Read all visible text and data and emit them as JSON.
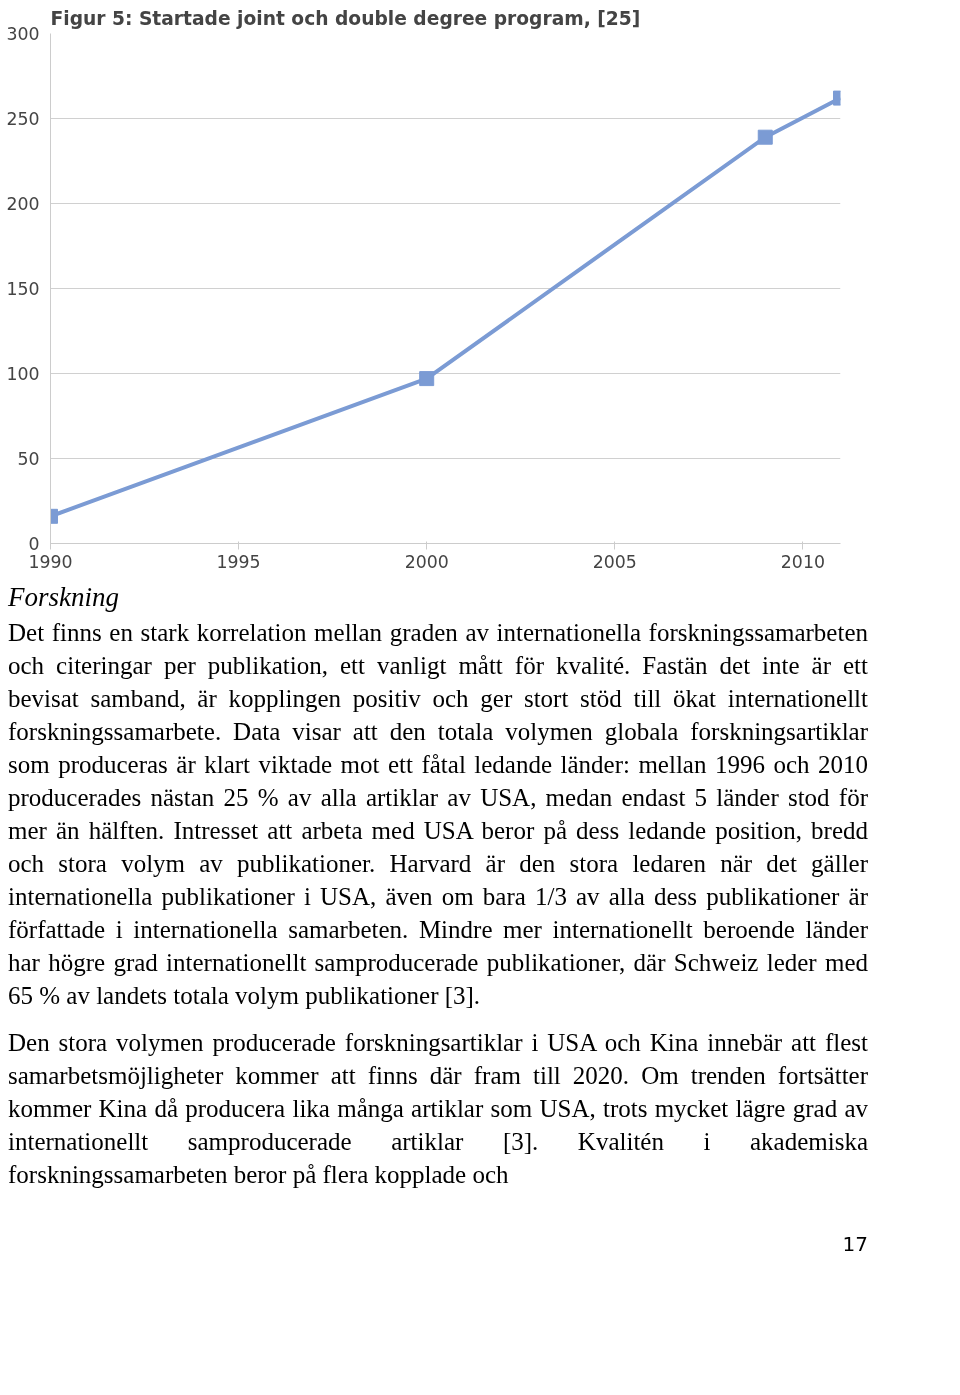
{
  "chart_data": {
    "type": "line",
    "title": "Figur 5: Startade joint och double degree program, [25]",
    "x": [
      1990,
      2000,
      2009,
      2011
    ],
    "series": [
      {
        "color": "#7b9bd4",
        "values": [
          16,
          97,
          239,
          262
        ]
      }
    ],
    "xlim": [
      1990,
      2011
    ],
    "xticks": [
      1990,
      1995,
      2000,
      2005,
      2010
    ],
    "ylim": [
      0,
      300
    ],
    "yticks": [
      0,
      50,
      100,
      150,
      200,
      250,
      300
    ],
    "grid": "y",
    "marker": "square",
    "line_style": "solid",
    "annotations": [
      "Forskning",
      "Det finns en stark korrelation mellan graden av internationella forskningssamarbeten och citeringar per publikation, ett vanligt mått för kvalité. Fastän det inte är ett bevisat samband, är kopplingen positiv och ger stort stöd till ökat internationellt forskningssamarbete. Data visar att den totala volymen globala forskningsartiklar som produceras är klart viktade mot ett fåtal ledande länder: mellan 1996 och 2010 producerades nästan 25 % av alla artiklar av USA, medan endast 5 länder stod för mer än hälften. Intresset att arbeta med USA beror på dess ledande position, bredd och stora volym av publikationer. Harvard är den stora ledaren när det gäller internationella publikationer i USA, även om bara 1/3 av alla dess publikationer är författade i internationella samarbeten. Mindre mer internationellt beroende länder har högre grad internationellt samproducerade publikationer, där Schweiz leder med 65 % av landets totala volym publikationer [3].",
      "Den stora volymen producerade forskningsartiklar i USA och Kina innebär att flest samarbetsmöjligheter kommer att finns där fram till 2020. Om trenden fortsätter kommer Kina då producera lika många artiklar som USA, trots mycket lägre grad av internationellt samproducerade artiklar [3]. Kvalitén i akademiska forskningssamarbeten beror på flera kopplade och",
      "17"
    ]
  }
}
